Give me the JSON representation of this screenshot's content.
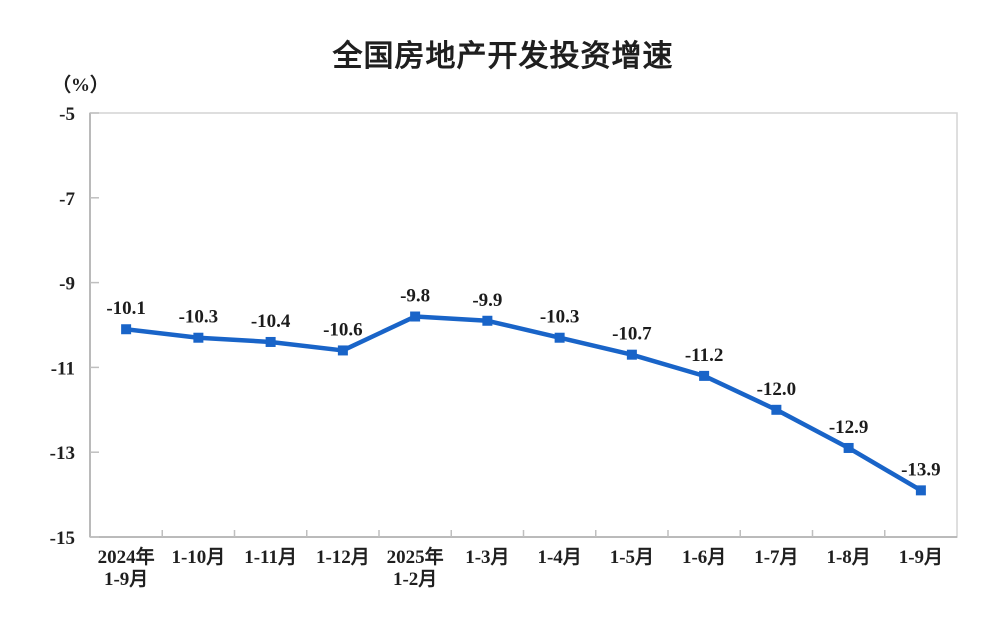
{
  "chart_data": {
    "type": "line",
    "title": "全国房地产开发投资增速",
    "unit_label": "（%）",
    "categories": [
      "2024年\n1-9月",
      "1-10月",
      "1-11月",
      "1-12月",
      "2025年\n1-2月",
      "1-3月",
      "1-4月",
      "1-5月",
      "1-6月",
      "1-7月",
      "1-8月",
      "1-9月"
    ],
    "series": [
      {
        "name": "全国房地产开发投资增速",
        "values": [
          -10.1,
          -10.3,
          -10.4,
          -10.6,
          -9.8,
          -9.9,
          -10.3,
          -10.7,
          -11.2,
          -12.0,
          -12.9,
          -13.9
        ],
        "data_labels": [
          "-10.1",
          "-10.3",
          "-10.4",
          "-10.6",
          "-9.8",
          "-9.9",
          "-10.3",
          "-10.7",
          "-11.2",
          "-12.0",
          "-12.9",
          "-13.9"
        ]
      }
    ],
    "ylim": [
      -15,
      -5
    ],
    "yticks": [
      -5,
      -7,
      -9,
      -11,
      -13,
      -15
    ],
    "ytick_labels": [
      "-5",
      "-7",
      "-9",
      "-11",
      "-13",
      "-15"
    ],
    "grid": false,
    "legend_position": "none",
    "marker": "square",
    "colors": {
      "series": "#1964C8",
      "plot_border": "#D4D4D4",
      "axis": "#ABABAB",
      "tick": "#BFBFBF",
      "text": "#1f1f1f"
    }
  }
}
